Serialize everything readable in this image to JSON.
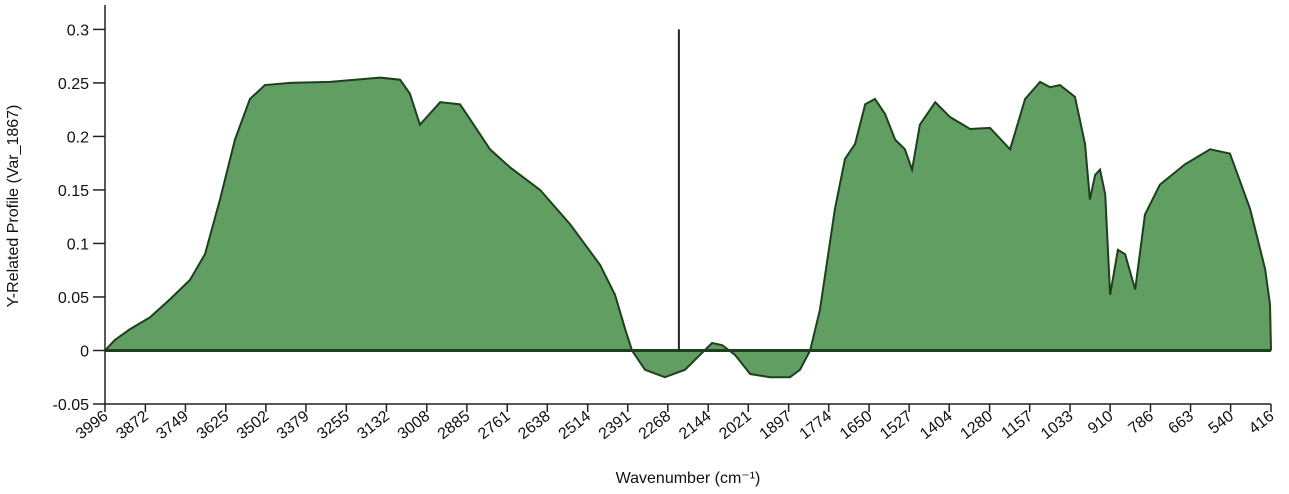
{
  "chart_data": {
    "type": "area",
    "xlabel": "Wavenumber (cm⁻¹)",
    "ylabel": "Y-Related Profile (Var_1867)",
    "color": "#619e62",
    "line_color": "#1e3f1e",
    "xlim": [
      3996,
      416
    ],
    "ylim": [
      -0.05,
      0.32
    ],
    "xticks": [
      3996,
      3872,
      3749,
      3625,
      3502,
      3379,
      3255,
      3132,
      3008,
      2885,
      2761,
      2638,
      2514,
      2391,
      2268,
      2144,
      2021,
      1897,
      1774,
      1650,
      1527,
      1404,
      1280,
      1157,
      1033,
      910,
      786,
      663,
      540,
      416
    ],
    "yticks": [
      0.3,
      0.25,
      0.2,
      0.15,
      0.1,
      0.05,
      0,
      -0.05
    ],
    "vline": {
      "x": 2234,
      "y": [
        0,
        0.3
      ]
    },
    "x": [
      3996,
      3965,
      3919,
      3858,
      3796,
      3735,
      3689,
      3643,
      3597,
      3551,
      3505,
      3428,
      3305,
      3152,
      3090,
      3060,
      3029,
      2967,
      2906,
      2875,
      2814,
      2752,
      2660,
      2568,
      2476,
      2430,
      2399,
      2378,
      2338,
      2277,
      2215,
      2169,
      2132,
      2101,
      2062,
      2015,
      1954,
      1893,
      1862,
      1831,
      1801,
      1755,
      1724,
      1693,
      1662,
      1632,
      1601,
      1570,
      1540,
      1518,
      1494,
      1447,
      1401,
      1340,
      1279,
      1217,
      1171,
      1125,
      1094,
      1064,
      1018,
      987,
      972,
      956,
      941,
      925,
      910,
      886,
      864,
      833,
      803,
      757,
      680,
      603,
      542,
      480,
      434,
      419,
      416
    ],
    "values": [
      0,
      0.01,
      0.02,
      0.031,
      0.048,
      0.066,
      0.09,
      0.141,
      0.197,
      0.235,
      0.248,
      0.25,
      0.251,
      0.255,
      0.253,
      0.24,
      0.211,
      0.232,
      0.23,
      0.216,
      0.188,
      0.171,
      0.15,
      0.118,
      0.08,
      0.052,
      0.02,
      0,
      -0.018,
      -0.025,
      -0.018,
      -0.004,
      0.007,
      0.005,
      -0.004,
      -0.022,
      -0.025,
      -0.025,
      -0.018,
      0,
      0.038,
      0.132,
      0.179,
      0.193,
      0.23,
      0.235,
      0.221,
      0.197,
      0.188,
      0.169,
      0.211,
      0.232,
      0.218,
      0.207,
      0.208,
      0.188,
      0.235,
      0.251,
      0.246,
      0.248,
      0.237,
      0.193,
      0.141,
      0.164,
      0.169,
      0.146,
      0.052,
      0.094,
      0.09,
      0.057,
      0.127,
      0.155,
      0.174,
      0.188,
      0.184,
      0.132,
      0.076,
      0.043,
      0
    ]
  }
}
